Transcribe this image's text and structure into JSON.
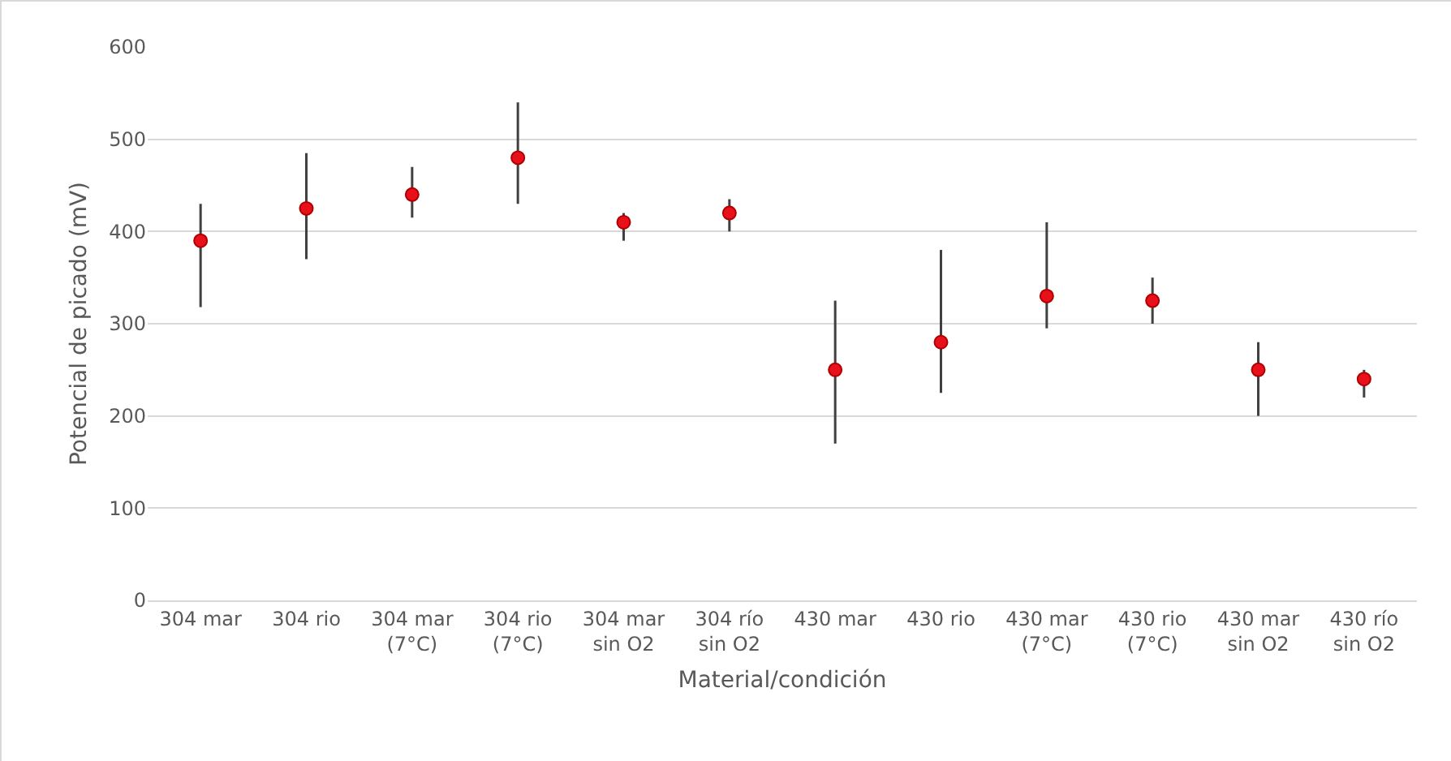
{
  "chart_data": {
    "type": "scatter",
    "xlabel": "Material/condición",
    "ylabel": "Potencial de picado (mV)",
    "categories": [
      "304 mar",
      "304 rio",
      "304 mar (7°C)",
      "304 rio (7°C)",
      "304 mar sin O2",
      "304 río sin O2",
      "430 mar",
      "430 rio",
      "430 mar (7°C)",
      "430 rio (7°C)",
      "430 mar sin O2",
      "430 río sin O2"
    ],
    "series": [
      {
        "color": "#e8101a",
        "values": [
          390,
          425,
          440,
          480,
          410,
          420,
          250,
          280,
          330,
          325,
          250,
          240
        ],
        "errors": [
          [
            318,
            430
          ],
          [
            370,
            485
          ],
          [
            415,
            470
          ],
          [
            430,
            540
          ],
          [
            390,
            420
          ],
          [
            400,
            435
          ],
          [
            170,
            325
          ],
          [
            225,
            380
          ],
          [
            295,
            410
          ],
          [
            300,
            350
          ],
          [
            200,
            280
          ],
          [
            220,
            250
          ]
        ]
      }
    ],
    "ylim": [
      0,
      600
    ],
    "yticks": [
      0,
      100,
      200,
      300,
      400,
      500,
      600
    ],
    "grid": "y",
    "marker": "circle"
  }
}
